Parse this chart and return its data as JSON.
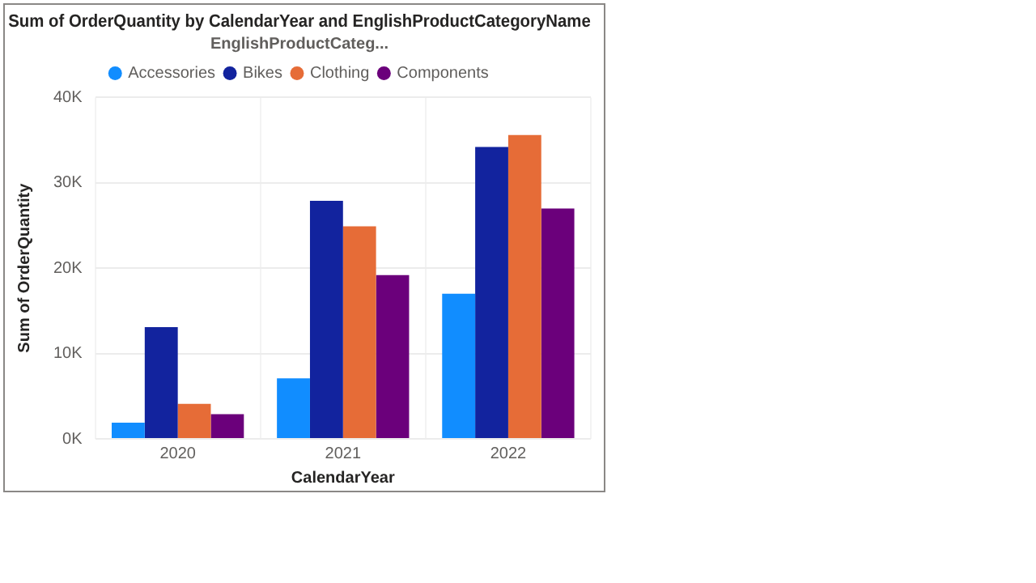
{
  "chart_data": {
    "type": "bar",
    "title": "Sum of OrderQuantity by CalendarYear and EnglishProductCategoryName",
    "xlabel": "CalendarYear",
    "ylabel": "Sum of OrderQuantity",
    "legend_title": "EnglishProductCateg...",
    "categories": [
      "2020",
      "2021",
      "2022"
    ],
    "series": [
      {
        "name": "Accessories",
        "color": "#118dff",
        "values": [
          1900,
          7100,
          17000
        ]
      },
      {
        "name": "Bikes",
        "color": "#12239e",
        "values": [
          13100,
          27900,
          34200
        ]
      },
      {
        "name": "Clothing",
        "color": "#e66c37",
        "values": [
          4100,
          24900,
          35600
        ]
      },
      {
        "name": "Components",
        "color": "#6b007b",
        "values": [
          2900,
          19200,
          27000
        ]
      }
    ],
    "ylim": [
      0,
      40000
    ],
    "yticks": [
      {
        "value": 0,
        "label": "0K"
      },
      {
        "value": 10000,
        "label": "10K"
      },
      {
        "value": 20000,
        "label": "20K"
      },
      {
        "value": 30000,
        "label": "30K"
      },
      {
        "value": 40000,
        "label": "40K"
      }
    ],
    "grid": true,
    "legend": "top"
  }
}
